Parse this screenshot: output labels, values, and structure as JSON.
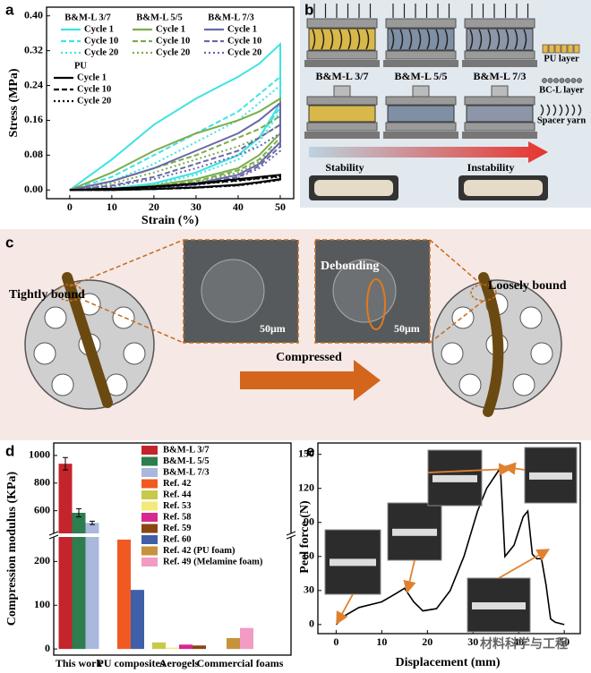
{
  "panel_letters": [
    "a",
    "b",
    "c",
    "d",
    "e"
  ],
  "chart_data": [
    {
      "type": "line",
      "xlabel": "Strain (%)",
      "ylabel": "Stress (MPa)",
      "xlim": [
        -5.5,
        53.2
      ],
      "ylim": [
        -0.02,
        0.42
      ],
      "xticks": [
        0,
        10,
        20,
        30,
        40,
        50
      ],
      "yticks": [
        {
          "value": 0,
          "label": "0.00"
        },
        {
          "value": 0.08,
          "label": "0.08"
        },
        {
          "value": 0.16,
          "label": "0.16"
        },
        {
          "value": 0.24,
          "label": "0.24"
        },
        {
          "value": 0.32,
          "label": "0.32"
        },
        {
          "value": 0.4,
          "label": "0.40"
        }
      ],
      "x": [
        0,
        10,
        20,
        30,
        40,
        45,
        50,
        50,
        45,
        40,
        30,
        20,
        10,
        0
      ],
      "groups": [
        {
          "name": "B&M-L 3/7",
          "color": "#3fe3e3",
          "series": [
            {
              "name": "Cycle 1",
              "dash": "solid",
              "values": [
                0,
                0.07,
                0.15,
                0.21,
                0.26,
                0.29,
                0.335,
                0.2,
                0.12,
                0.08,
                0.04,
                0.015,
                0.003,
                0
              ]
            },
            {
              "name": "Cycle 10",
              "dash": "dashed",
              "values": [
                0,
                0.03,
                0.08,
                0.13,
                0.18,
                0.22,
                0.26,
                0.19,
                0.12,
                0.08,
                0.04,
                0.015,
                0.003,
                0
              ]
            },
            {
              "name": "Cycle 20",
              "dash": "dotted",
              "values": [
                0,
                0.02,
                0.06,
                0.11,
                0.16,
                0.2,
                0.24,
                0.18,
                0.11,
                0.07,
                0.035,
                0.012,
                0.002,
                0
              ]
            }
          ]
        },
        {
          "name": "B&M-L 5/5",
          "color": "#7aad4c",
          "series": [
            {
              "name": "Cycle 1",
              "dash": "solid",
              "values": [
                0,
                0.04,
                0.09,
                0.13,
                0.16,
                0.18,
                0.21,
                0.13,
                0.08,
                0.05,
                0.025,
                0.01,
                0.002,
                0
              ]
            },
            {
              "name": "Cycle 10",
              "dash": "dashed",
              "values": [
                0,
                0.02,
                0.05,
                0.08,
                0.12,
                0.14,
                0.17,
                0.12,
                0.07,
                0.045,
                0.02,
                0.008,
                0.001,
                0
              ]
            },
            {
              "name": "Cycle 20",
              "dash": "dotted",
              "values": [
                0,
                0.015,
                0.04,
                0.07,
                0.1,
                0.12,
                0.15,
                0.11,
                0.065,
                0.04,
                0.018,
                0.006,
                0.001,
                0
              ]
            }
          ]
        },
        {
          "name": "B&M-L 7/3",
          "color": "#6a68a8",
          "series": [
            {
              "name": "Cycle 1",
              "dash": "solid",
              "values": [
                0,
                0.02,
                0.05,
                0.09,
                0.13,
                0.16,
                0.2,
                0.11,
                0.06,
                0.035,
                0.015,
                0.005,
                0.001,
                0
              ]
            },
            {
              "name": "Cycle 10",
              "dash": "dashed",
              "values": [
                0,
                0.01,
                0.03,
                0.06,
                0.09,
                0.12,
                0.15,
                0.1,
                0.055,
                0.03,
                0.012,
                0.004,
                0.001,
                0
              ]
            },
            {
              "name": "Cycle 20",
              "dash": "dotted",
              "values": [
                0,
                0.008,
                0.025,
                0.05,
                0.08,
                0.1,
                0.13,
                0.09,
                0.05,
                0.028,
                0.01,
                0.003,
                0.001,
                0
              ]
            }
          ]
        },
        {
          "name": "PU",
          "color": "#000000",
          "series": [
            {
              "name": "Cycle 1",
              "dash": "solid",
              "values": [
                0,
                0.003,
                0.008,
                0.015,
                0.025,
                0.03,
                0.035,
                0.025,
                0.018,
                0.012,
                0.006,
                0.002,
                0,
                0
              ]
            },
            {
              "name": "Cycle 10",
              "dash": "dashed",
              "values": [
                0,
                0.003,
                0.007,
                0.014,
                0.022,
                0.027,
                0.032,
                0.024,
                0.017,
                0.011,
                0.005,
                0.002,
                0,
                0
              ]
            },
            {
              "name": "Cycle 20",
              "dash": "dotted",
              "values": [
                0,
                0.002,
                0.006,
                0.013,
                0.021,
                0.026,
                0.03,
                0.023,
                0.016,
                0.01,
                0.005,
                0.002,
                0,
                0
              ]
            }
          ]
        }
      ]
    },
    {
      "type": "bar",
      "ylabel": "Compression modulus (KPa)",
      "categories": [
        "This work",
        "PU composites",
        "Aerogels",
        "Commercial foams"
      ],
      "ylim": [
        -14,
        1090
      ],
      "axis_break": [
        256,
        436
      ],
      "yticks": [
        0,
        100,
        200,
        600,
        800,
        1000
      ],
      "series": [
        {
          "name": "B&M-L 3/7",
          "color": "#c4242b",
          "values": [
            940,
            null,
            null,
            null
          ],
          "errors": [
            45,
            null,
            null,
            null
          ]
        },
        {
          "name": "B&M-L 5/5",
          "color": "#2e7d4f",
          "values": [
            585,
            null,
            null,
            null
          ],
          "errors": [
            30,
            null,
            null,
            null
          ]
        },
        {
          "name": "B&M-L 7/3",
          "color": "#a9b8dc",
          "values": [
            512,
            null,
            null,
            null
          ],
          "errors": [
            12,
            null,
            null,
            null
          ]
        },
        {
          "name": "Ref. 42",
          "color": "#f05a22",
          "values": [
            null,
            250,
            null,
            null
          ]
        },
        {
          "name": "Ref. 44",
          "color": "#c6c94a",
          "values": [
            null,
            null,
            15,
            null
          ]
        },
        {
          "name": "Ref. 53",
          "color": "#f5e97a",
          "values": [
            null,
            null,
            3,
            null
          ]
        },
        {
          "name": "Ref. 58",
          "color": "#d6288f",
          "values": [
            null,
            null,
            10,
            null
          ]
        },
        {
          "name": "Ref. 59",
          "color": "#8b4513",
          "values": [
            null,
            null,
            8,
            null
          ]
        },
        {
          "name": "Ref. 60",
          "color": "#3f5fa8",
          "values": [
            null,
            135,
            null,
            null
          ]
        },
        {
          "name": "Ref. 42 (PU foam)",
          "color": "#c8923c",
          "values": [
            null,
            null,
            null,
            25
          ]
        },
        {
          "name": "Ref. 49 (Melamine foam)",
          "color": "#f29bc4",
          "values": [
            null,
            null,
            null,
            48
          ]
        }
      ]
    },
    {
      "type": "line",
      "xlabel": "Displacement (mm)",
      "ylabel": "Peel force (N)",
      "xlim": [
        -4,
        53.5
      ],
      "ylim": [
        -8,
        160
      ],
      "xticks": [
        0,
        10,
        20,
        30,
        40,
        50
      ],
      "yticks": [
        0,
        30,
        60,
        90,
        120,
        150
      ],
      "color": "#000000",
      "x": [
        0,
        2,
        5,
        10,
        13,
        15,
        17,
        19,
        22,
        25,
        28,
        31,
        33,
        35,
        36,
        37,
        39,
        41,
        42,
        43,
        44,
        45,
        46,
        47,
        48,
        50
      ],
      "values": [
        0,
        8,
        15,
        20,
        27,
        32,
        20,
        12,
        14,
        30,
        60,
        100,
        120,
        132,
        138,
        60,
        70,
        95,
        100,
        62,
        58,
        58,
        35,
        5,
        2,
        0
      ]
    }
  ],
  "diagram_b": {
    "samples": [
      "B&M-L 3/7",
      "B&M-L 5/5",
      "B&M-L 7/3"
    ],
    "legend": [
      "PU layer",
      "BC-L layer",
      "Spacer yarn"
    ],
    "stability": "Stability",
    "instability": "Instability"
  },
  "diagram_c": {
    "left": "Tightly bound",
    "right": "Loosely bound",
    "debonding": "Debonding",
    "scale_bars": [
      "50μm",
      "50μm"
    ],
    "arrow": "Compressed"
  },
  "watermark": "材料科学与工程"
}
